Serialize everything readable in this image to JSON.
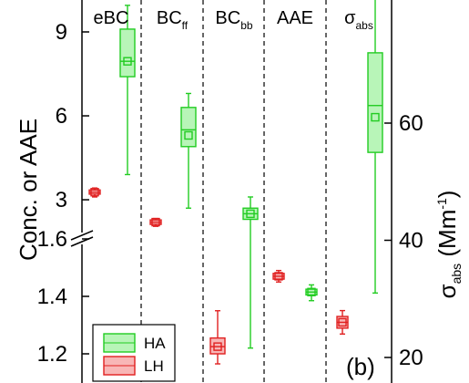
{
  "chart_data": {
    "type": "box",
    "panel_label": "(b)",
    "left_axis": {
      "label": "Conc. or AAE",
      "broken": true,
      "upper_segment": {
        "range": [
          1.6,
          10
        ],
        "ticks": [
          "3",
          "6",
          "9"
        ]
      },
      "lower_segment": {
        "range": [
          1.1,
          1.62
        ],
        "ticks": [
          "1.2",
          "1.4",
          "1.6"
        ]
      }
    },
    "right_axis": {
      "label_main": "σ",
      "label_sub": "abs",
      "label_unit": " (Mm",
      "label_sup": "-1",
      "label_close": ")",
      "range": [
        16,
        86
      ],
      "ticks": [
        "20",
        "40",
        "60"
      ]
    },
    "groups": [
      {
        "main": "eBC",
        "sub": ""
      },
      {
        "main": "BC",
        "sub": "ff"
      },
      {
        "main": "BC",
        "sub": "bb"
      },
      {
        "main": "AAE",
        "sub": ""
      },
      {
        "main": "σ",
        "sub": "abs"
      }
    ],
    "legend": [
      "HA",
      "LH"
    ],
    "colors": {
      "HA_edge": "#22cc22",
      "HA_fill": "#b8f5b8",
      "LH_edge": "#e02020",
      "LH_fill": "#f8b6b6"
    },
    "series": [
      {
        "name": "LH",
        "boxes": [
          {
            "group": 0,
            "axis": "upper",
            "whisker_low": 3.1,
            "q1": 3.2,
            "median": 3.27,
            "q3": 3.35,
            "whisker_high": 3.42,
            "mean": 3.27
          },
          {
            "group": 1,
            "axis": "upper",
            "whisker_low": 2.05,
            "q1": 2.12,
            "median": 2.2,
            "q3": 2.28,
            "whisker_high": 2.33,
            "mean": 2.2
          },
          {
            "group": 2,
            "axis": "lower",
            "whisker_low": 1.165,
            "q1": 1.2,
            "median": 1.225,
            "q3": 1.255,
            "whisker_high": 1.35,
            "mean": 1.225
          },
          {
            "group": 3,
            "axis": "lower",
            "whisker_low": 1.45,
            "q1": 1.46,
            "median": 1.47,
            "q3": 1.48,
            "whisker_high": 1.49,
            "mean": 1.47
          },
          {
            "group": 4,
            "axis": "right",
            "whisker_low": 24,
            "q1": 25,
            "median": 26,
            "q3": 27,
            "whisker_high": 28,
            "mean": 26
          }
        ]
      },
      {
        "name": "HA",
        "boxes": [
          {
            "group": 0,
            "axis": "upper",
            "whisker_low": 3.9,
            "q1": 7.4,
            "median": 7.95,
            "q3": 9.1,
            "whisker_high": 9.95,
            "mean": 7.95
          },
          {
            "group": 1,
            "axis": "upper",
            "whisker_low": 2.7,
            "q1": 4.9,
            "median": 5.5,
            "q3": 6.3,
            "whisker_high": 6.8,
            "mean": 5.3
          },
          {
            "group": 2,
            "axis": "upper",
            "whisker_low": 1.6,
            "q1": 2.3,
            "median": 2.5,
            "q3": 2.7,
            "whisker_high": 3.1,
            "mean": 2.5,
            "whisker_low_lower": 1.22
          },
          {
            "group": 3,
            "axis": "lower",
            "whisker_low": 1.385,
            "q1": 1.405,
            "median": 1.415,
            "q3": 1.425,
            "whisker_high": 1.44,
            "mean": 1.415
          },
          {
            "group": 4,
            "axis": "right",
            "whisker_low": 31,
            "q1": 55,
            "median": 63,
            "q3": 72,
            "whisker_high": 83,
            "mean": 61
          }
        ]
      }
    ]
  }
}
